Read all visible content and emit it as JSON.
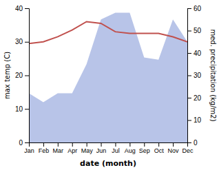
{
  "chart_data": {
    "type": "line",
    "x_label": "date (month)",
    "y_label": "max temp (C)",
    "y2_label": "med. precipitation (kg/m2)",
    "categories": [
      "Jan",
      "Feb",
      "Mar",
      "Apr",
      "May",
      "Jun",
      "Jul",
      "Aug",
      "Sep",
      "Oct",
      "Nov",
      "Dec"
    ],
    "series": [
      {
        "type": "area",
        "axis": "y2",
        "color": "#b8c4e8",
        "values": [
          22,
          18,
          22,
          22,
          35,
          55,
          58,
          58,
          38,
          37,
          55,
          45
        ]
      },
      {
        "type": "line",
        "color": "#c0504d",
        "values": [
          29.5,
          30.0,
          31.5,
          33.5,
          36.0,
          35.5,
          33.0,
          32.5,
          32.5,
          32.5,
          31.5,
          30.0
        ]
      }
    ],
    "ylim": [
      0,
      40
    ],
    "yticks": [
      0,
      10,
      20,
      30,
      40
    ],
    "y2lim": [
      0,
      60
    ],
    "y2ticks": [
      0,
      10,
      20,
      30,
      40,
      50,
      60
    ],
    "grid": false
  }
}
